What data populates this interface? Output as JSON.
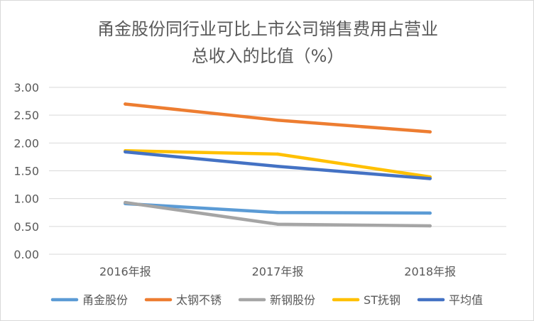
{
  "chart_data": {
    "type": "line",
    "title_line1": "甬金股份同行业可比上市公司销售费用占营业",
    "title_line2": "总收入的比值（%）",
    "categories": [
      "2016年报",
      "2017年报",
      "2018年报"
    ],
    "ylim": [
      0,
      3
    ],
    "yticks": [
      "0.00",
      "0.50",
      "1.00",
      "1.50",
      "2.00",
      "2.50",
      "3.00"
    ],
    "grid": true,
    "legend_position": "bottom",
    "series": [
      {
        "name": "甬金股份",
        "color": "#5b9bd5",
        "values": [
          0.91,
          0.75,
          0.74
        ]
      },
      {
        "name": "太钢不锈",
        "color": "#ed7d31",
        "values": [
          2.7,
          2.41,
          2.2
        ]
      },
      {
        "name": "新钢股份",
        "color": "#a5a5a5",
        "values": [
          0.93,
          0.54,
          0.51
        ]
      },
      {
        "name": "ST抚钢",
        "color": "#ffc000",
        "values": [
          1.86,
          1.8,
          1.39
        ]
      },
      {
        "name": "平均值",
        "color": "#4472c4",
        "values": [
          1.84,
          1.58,
          1.36
        ]
      }
    ]
  }
}
